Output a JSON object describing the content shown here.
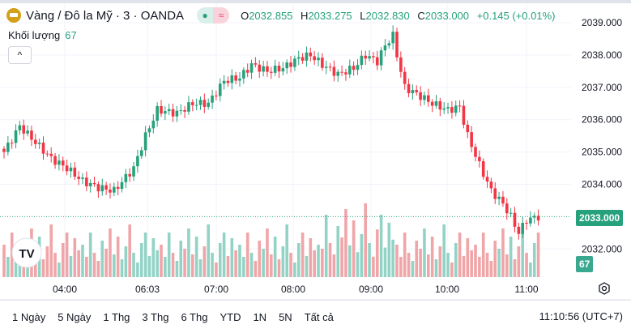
{
  "header": {
    "symbol": "Vàng / Đô la Mỹ · 3 · OANDA",
    "open_label": "O",
    "open": "2032.855",
    "high_label": "H",
    "high": "2033.275",
    "low_label": "L",
    "low": "2032.830",
    "close_label": "C",
    "close": "2033.000",
    "change": "+0.145 (+0.01%)",
    "status_dot": "●",
    "status_wave": "≈"
  },
  "volume": {
    "label": "Khối lượng",
    "value": "67"
  },
  "price_axis": {
    "ticks": [
      "2039.000",
      "2038.000",
      "2037.000",
      "2036.000",
      "2035.000",
      "2034.000",
      "2032.000"
    ],
    "current": "2033.000",
    "volume_tag": "67"
  },
  "time_axis": {
    "ticks": [
      "04:00",
      "06:03",
      "07:00",
      "08:00",
      "09:00",
      "10:00",
      "11:00"
    ]
  },
  "bottom": {
    "ranges": [
      "1 Ngày",
      "5 Ngày",
      "1 Thg",
      "3 Thg",
      "6 Thg",
      "YTD",
      "1N",
      "5N",
      "Tất cả"
    ],
    "clock": "11:10:56 (UTC+7)"
  },
  "colors": {
    "up": "#26a17b",
    "down": "#f23645",
    "vol_up": "#93d3c6",
    "vol_down": "#f0a5a8"
  },
  "chart_data": {
    "type": "candlestick",
    "ylim": [
      2031.5,
      2039.2
    ],
    "path": [
      [
        0,
        2035.0
      ],
      [
        4,
        2035.8
      ],
      [
        8,
        2035.3
      ],
      [
        12,
        2034.8
      ],
      [
        16,
        2034.5
      ],
      [
        20,
        2034.1
      ],
      [
        24,
        2033.9
      ],
      [
        28,
        2033.8
      ],
      [
        33,
        2034.5
      ],
      [
        36,
        2035.5
      ],
      [
        39,
        2036.3
      ],
      [
        44,
        2036.2
      ],
      [
        48,
        2036.5
      ],
      [
        52,
        2036.5
      ],
      [
        56,
        2037.2
      ],
      [
        60,
        2037.3
      ],
      [
        63,
        2037.7
      ],
      [
        67,
        2037.5
      ],
      [
        71,
        2037.6
      ],
      [
        75,
        2037.9
      ],
      [
        78,
        2038.0
      ],
      [
        81,
        2037.7
      ],
      [
        85,
        2037.4
      ],
      [
        89,
        2037.6
      ],
      [
        92,
        2038.0
      ],
      [
        95,
        2037.8
      ],
      [
        97,
        2038.3
      ],
      [
        99,
        2038.6
      ],
      [
        100,
        2038.0
      ],
      [
        102,
        2037.0
      ],
      [
        105,
        2036.8
      ],
      [
        109,
        2036.5
      ],
      [
        113,
        2036.3
      ],
      [
        116,
        2036.4
      ],
      [
        118,
        2035.5
      ],
      [
        121,
        2034.6
      ],
      [
        124,
        2033.8
      ],
      [
        127,
        2033.4
      ],
      [
        129,
        2033.0
      ],
      [
        131,
        2032.5
      ],
      [
        133,
        2032.9
      ],
      [
        136,
        2033.0
      ]
    ],
    "volume_pattern": [
      40,
      25,
      55,
      30,
      20,
      45,
      35,
      60,
      28,
      50,
      22,
      38,
      65,
      30,
      18,
      42,
      55,
      26,
      48,
      33
    ]
  }
}
